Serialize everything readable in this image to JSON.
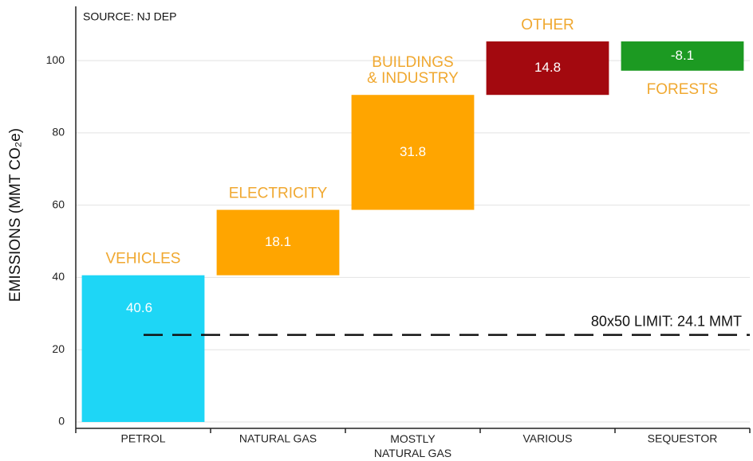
{
  "chart_data": {
    "type": "waterfall",
    "source": "SOURCE: NJ DEP",
    "y_label": "EMISSIONS (MMT CO₂e)",
    "categories": [
      "PETROL",
      "NATURAL GAS",
      "MOSTLY\nNATURAL GAS",
      "VARIOUS",
      "SEQUESTOR"
    ],
    "segment_labels": [
      "VEHICLES",
      "ELECTRICITY",
      "BUILDINGS\n& INDUSTRY",
      "OTHER",
      "FORESTS"
    ],
    "values": [
      40.6,
      18.1,
      31.8,
      14.8,
      -8.1
    ],
    "colors": [
      "#1ed6f6",
      "#ffa500",
      "#ffa500",
      "#a3090f",
      "#1c9a22"
    ],
    "ylim": [
      0,
      115
    ],
    "yticks": [
      0,
      20,
      40,
      60,
      80,
      100
    ],
    "grid": true,
    "limit": {
      "value": 24.1,
      "label": "80x50 LIMIT: 24.1 MMT"
    }
  }
}
